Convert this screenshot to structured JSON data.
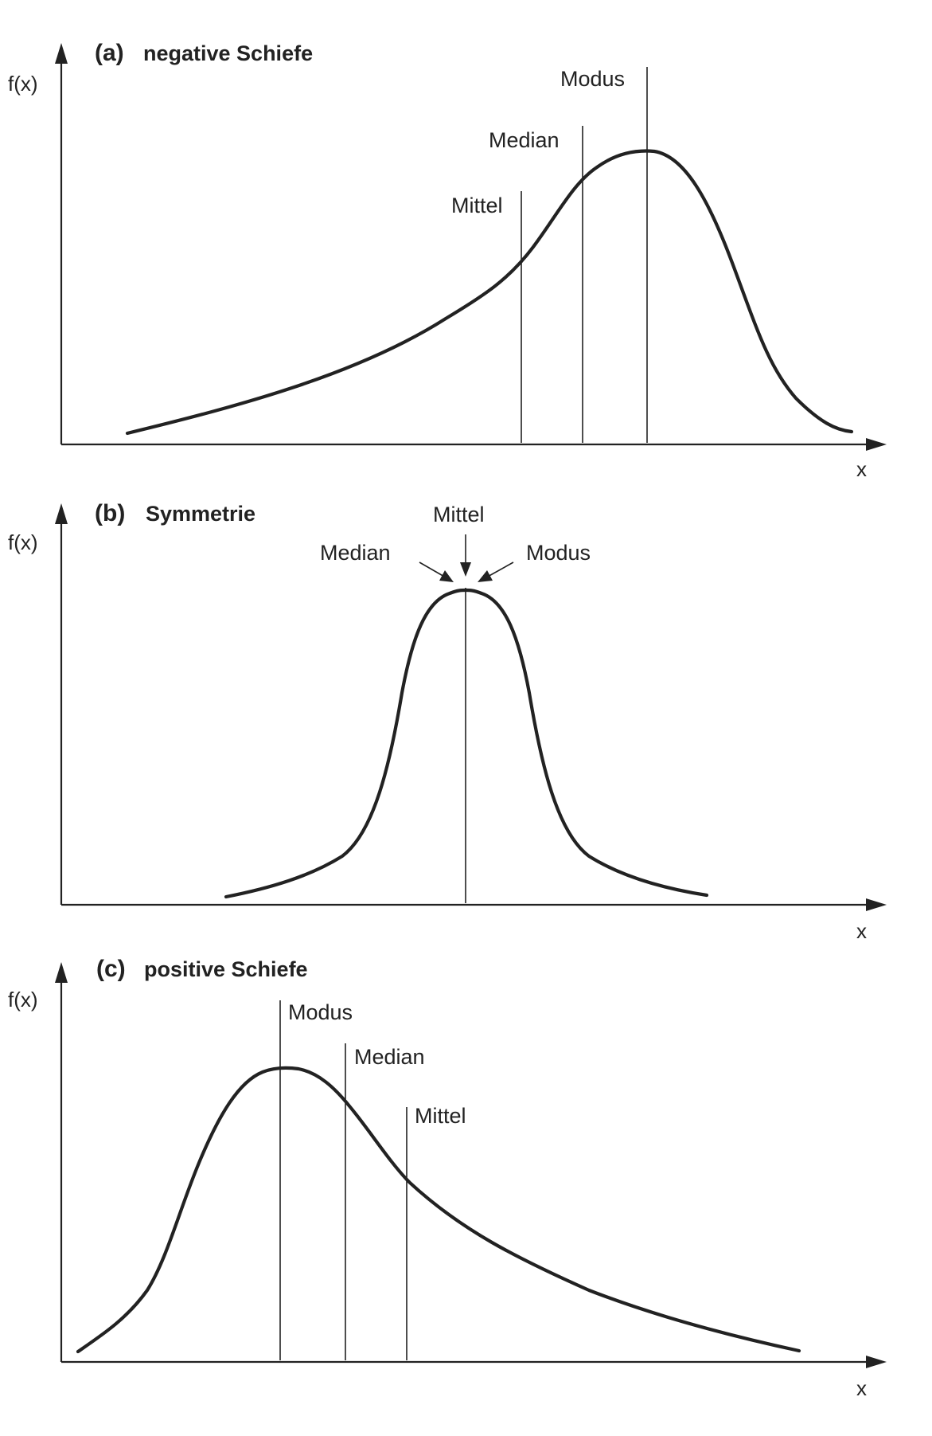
{
  "panels": [
    {
      "id": "a",
      "letter": "(a)",
      "title": "negative Schiefe",
      "y_axis_label": "f(x)",
      "x_axis_label": "x",
      "markers": [
        {
          "label": "Mittel"
        },
        {
          "label": "Median"
        },
        {
          "label": "Modus"
        }
      ]
    },
    {
      "id": "b",
      "letter": "(b)",
      "title": "Symmetrie",
      "y_axis_label": "f(x)",
      "x_axis_label": "x",
      "markers": [
        {
          "label": "Median"
        },
        {
          "label": "Mittel"
        },
        {
          "label": "Modus"
        }
      ]
    },
    {
      "id": "c",
      "letter": "(c)",
      "title": "positive Schiefe",
      "y_axis_label": "f(x)",
      "x_axis_label": "x",
      "markers": [
        {
          "label": "Modus"
        },
        {
          "label": "Median"
        },
        {
          "label": "Mittel"
        }
      ]
    }
  ],
  "colors": {
    "ink": "#222222",
    "background": "#ffffff"
  }
}
